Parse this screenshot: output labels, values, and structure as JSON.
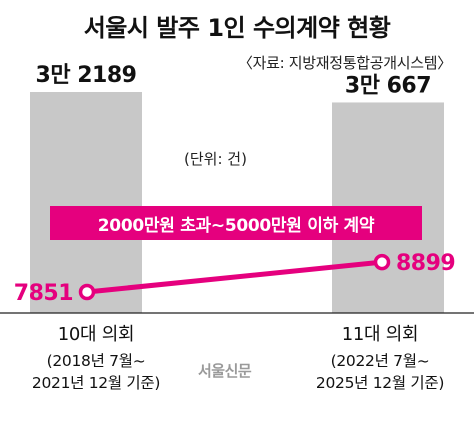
{
  "title": "서울시 발주 1인 수의계약 현황",
  "source": "〈자료: 지방재정통합공개시스템〉",
  "unit_note": "(단위: 건)",
  "band_label": "2000만원 초과~5000만원 이하 계약",
  "watermark": "서울신문",
  "colors": {
    "bar": "#c8c8c8",
    "line": "#e5007e",
    "text": "#111111"
  },
  "chart_data": {
    "type": "bar",
    "title": "서울시 발주 1인 수의계약 현황",
    "categories": [
      "10대 의회",
      "11대 의회"
    ],
    "periods": [
      [
        "(2018년 7월~",
        "2021년 12월 기준)"
      ],
      [
        "(2022년 7월~",
        "2025년 12월 기준)"
      ]
    ],
    "series": [
      {
        "type": "bar",
        "values": [
          32189,
          30667
        ],
        "labels": [
          "3만 2189",
          "3만 667"
        ]
      },
      {
        "name": "2000만원 초과~5000만원 이하 계약",
        "type": "line",
        "values": [
          7851,
          8899
        ],
        "labels": [
          "7851",
          "8899"
        ]
      }
    ],
    "unit": "(단위: 건)",
    "grid": false
  }
}
